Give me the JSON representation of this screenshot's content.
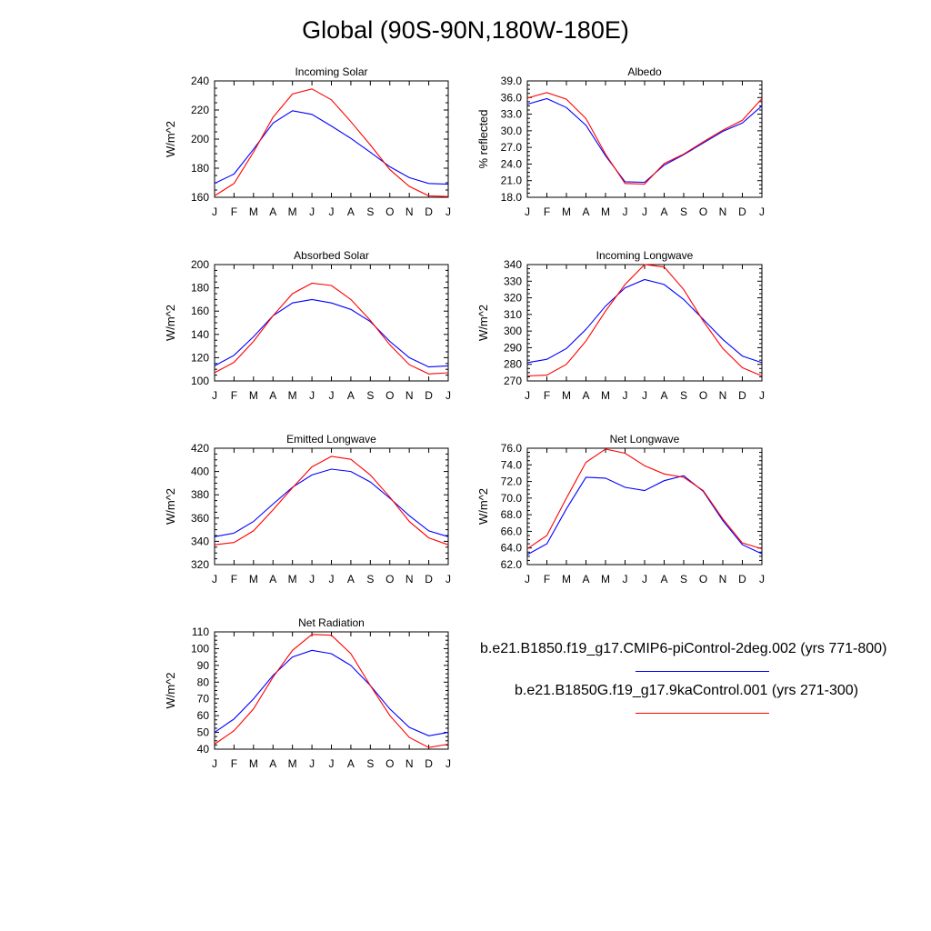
{
  "title": "Global (90S-90N,180W-180E)",
  "colors": {
    "series_1": "#0000ff",
    "series_2": "#ff0000",
    "axis": "#000000"
  },
  "legend": [
    {
      "label": "b.e21.B1850.f19_g17.CMIP6-piControl-2deg.002 (yrs 771-800)",
      "color": "#0000ff"
    },
    {
      "label": "b.e21.B1850G.f19_g17.9kaControl.001 (yrs 271-300)",
      "color": "#ff0000"
    }
  ],
  "chart_data": [
    {
      "type": "line",
      "title": "Incoming Solar",
      "ylabel": "W/m^2",
      "categories": [
        "J",
        "F",
        "M",
        "A",
        "M",
        "J",
        "J",
        "A",
        "S",
        "O",
        "N",
        "D",
        "J"
      ],
      "ylim": [
        160,
        240
      ],
      "yticks": [
        "160",
        "180",
        "200",
        "220",
        "240"
      ],
      "series": [
        {
          "color": "#0000ff",
          "values": [
            169.5,
            176,
            193,
            211,
            219.5,
            217,
            209,
            200.5,
            191,
            181,
            173.5,
            169.5,
            169
          ]
        },
        {
          "color": "#ff0000",
          "values": [
            161,
            169.5,
            191,
            215,
            231,
            234.5,
            227,
            212,
            196,
            179,
            167.5,
            161,
            160.5
          ]
        }
      ]
    },
    {
      "type": "line",
      "title": "Albedo",
      "ylabel": "% reflected",
      "categories": [
        "J",
        "F",
        "M",
        "A",
        "M",
        "J",
        "J",
        "A",
        "S",
        "O",
        "N",
        "D",
        "J"
      ],
      "ylim": [
        18,
        39
      ],
      "yticks": [
        "18.0",
        "21.0",
        "24.0",
        "27.0",
        "30.0",
        "33.0",
        "36.0",
        "39.0"
      ],
      "series": [
        {
          "color": "#0000ff",
          "values": [
            34.8,
            35.8,
            34.2,
            31.0,
            25.5,
            20.8,
            20.7,
            23.8,
            25.7,
            27.8,
            29.9,
            31.4,
            34.5
          ]
        },
        {
          "color": "#ff0000",
          "values": [
            35.9,
            36.9,
            35.7,
            32.2,
            25.8,
            20.5,
            20.4,
            24.1,
            25.8,
            28.0,
            30.1,
            31.9,
            35.8
          ]
        }
      ]
    },
    {
      "type": "line",
      "title": "Absorbed Solar",
      "ylabel": "W/m^2",
      "categories": [
        "J",
        "F",
        "M",
        "A",
        "M",
        "J",
        "J",
        "A",
        "S",
        "O",
        "N",
        "D",
        "J"
      ],
      "ylim": [
        100,
        200
      ],
      "yticks": [
        "100",
        "120",
        "140",
        "160",
        "180",
        "200"
      ],
      "series": [
        {
          "color": "#0000ff",
          "values": [
            113,
            122,
            138,
            156,
            167,
            170,
            167,
            161.5,
            151,
            134,
            120,
            112,
            113
          ]
        },
        {
          "color": "#ff0000",
          "values": [
            107,
            116,
            134,
            156,
            175,
            184,
            182,
            170,
            152,
            131,
            114,
            106,
            107
          ]
        }
      ]
    },
    {
      "type": "line",
      "title": "Incoming Longwave",
      "ylabel": "W/m^2",
      "categories": [
        "J",
        "F",
        "M",
        "A",
        "M",
        "J",
        "J",
        "A",
        "S",
        "O",
        "N",
        "D",
        "J"
      ],
      "ylim": [
        270,
        340
      ],
      "yticks": [
        "270",
        "280",
        "290",
        "300",
        "310",
        "320",
        "330",
        "340"
      ],
      "series": [
        {
          "color": "#0000ff",
          "values": [
            281,
            283,
            289.5,
            301,
            315,
            326,
            331,
            328,
            319,
            307,
            295,
            285,
            281
          ]
        },
        {
          "color": "#ff0000",
          "values": [
            273,
            273.5,
            280,
            294,
            312,
            328,
            340,
            338.5,
            325,
            306,
            289.5,
            278,
            273
          ]
        }
      ]
    },
    {
      "type": "line",
      "title": "Emitted Longwave",
      "ylabel": "W/m^2",
      "categories": [
        "J",
        "F",
        "M",
        "A",
        "M",
        "J",
        "J",
        "A",
        "S",
        "O",
        "N",
        "D",
        "J"
      ],
      "ylim": [
        320,
        420
      ],
      "yticks": [
        "320",
        "340",
        "360",
        "380",
        "400",
        "420"
      ],
      "series": [
        {
          "color": "#0000ff",
          "values": [
            344,
            347,
            357,
            372,
            386.5,
            397,
            402,
            400,
            391,
            377,
            362,
            349,
            344
          ]
        },
        {
          "color": "#ff0000",
          "values": [
            337,
            339,
            349,
            367,
            386,
            404,
            413,
            410.5,
            397,
            378,
            357,
            343,
            337
          ]
        }
      ]
    },
    {
      "type": "line",
      "title": "Net Longwave",
      "ylabel": "W/m^2",
      "categories": [
        "J",
        "F",
        "M",
        "A",
        "M",
        "J",
        "J",
        "A",
        "S",
        "O",
        "N",
        "D",
        "J"
      ],
      "ylim": [
        62,
        76
      ],
      "yticks": [
        "62.0",
        "64.0",
        "66.0",
        "68.0",
        "70.0",
        "72.0",
        "74.0",
        "76.0"
      ],
      "series": [
        {
          "color": "#0000ff",
          "values": [
            63.2,
            64.5,
            68.7,
            72.5,
            72.4,
            71.3,
            70.9,
            72.1,
            72.7,
            70.8,
            67.3,
            64.4,
            63.3
          ]
        },
        {
          "color": "#ff0000",
          "values": [
            63.9,
            65.5,
            70.0,
            74.3,
            75.9,
            75.4,
            73.9,
            72.9,
            72.5,
            70.9,
            67.5,
            64.6,
            63.9
          ]
        }
      ]
    },
    {
      "type": "line",
      "title": "Net Radiation",
      "ylabel": "W/m^2",
      "categories": [
        "J",
        "F",
        "M",
        "A",
        "M",
        "J",
        "J",
        "A",
        "S",
        "O",
        "N",
        "D",
        "J"
      ],
      "ylim": [
        40,
        110
      ],
      "yticks": [
        "40",
        "50",
        "60",
        "70",
        "80",
        "90",
        "100",
        "110"
      ],
      "series": [
        {
          "color": "#0000ff",
          "values": [
            50,
            58,
            70,
            84,
            95,
            99,
            97,
            90,
            78,
            64,
            53,
            48,
            50
          ]
        },
        {
          "color": "#ff0000",
          "values": [
            43,
            51,
            64,
            83,
            99,
            108.5,
            108,
            97,
            78,
            60,
            47,
            41,
            43
          ]
        }
      ]
    }
  ]
}
